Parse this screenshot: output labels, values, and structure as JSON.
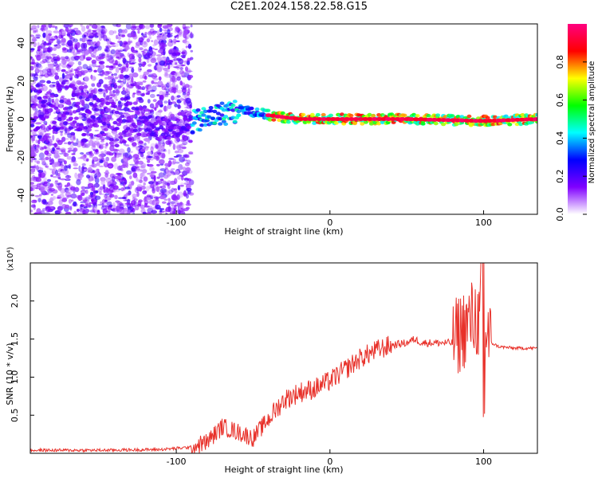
{
  "title": "C2E1.2024.158.22.58.G15",
  "chart_data": [
    {
      "type": "heatmap",
      "xlabel": "Height of straight line (km)",
      "ylabel": "Frequency (Hz)",
      "xlim": [
        -195,
        135
      ],
      "ylim": [
        -50,
        50
      ],
      "x_ticks": [
        -100,
        0,
        100
      ],
      "y_ticks": [
        -40,
        -20,
        0,
        20,
        40
      ],
      "colorbar": {
        "label": "Normalized spectral amplitude",
        "range": [
          0,
          1
        ],
        "ticks": [
          "0.0",
          "0.2",
          "0.4",
          "0.6",
          "0.8"
        ],
        "colors": [
          "#ffffff",
          "#8000ff",
          "#0000ff",
          "#00ffff",
          "#00ff00",
          "#ffff00",
          "#ff0000",
          "#ff0080"
        ]
      },
      "ridge": [
        {
          "x": -195,
          "f": 8
        },
        {
          "x": -160,
          "f": 4
        },
        {
          "x": -130,
          "f": -3
        },
        {
          "x": -110,
          "f": -5
        },
        {
          "x": -90,
          "f": -2
        },
        {
          "x": -70,
          "f": 3
        },
        {
          "x": -55,
          "f": 5
        },
        {
          "x": -40,
          "f": 2
        },
        {
          "x": -20,
          "f": 0
        },
        {
          "x": 0,
          "f": 0
        },
        {
          "x": 50,
          "f": 0
        },
        {
          "x": 100,
          "f": -1
        },
        {
          "x": 135,
          "f": 0
        }
      ]
    },
    {
      "type": "line",
      "xlabel": "Height of straight line (km)",
      "ylabel": "SNR (10 * v/v)",
      "y_multiplier": "(x10⁴)",
      "xlim": [
        -195,
        135
      ],
      "ylim": [
        0,
        2.5
      ],
      "x_ticks": [
        -100,
        0,
        100
      ],
      "y_ticks": [
        "0.5",
        "1.0",
        "1.5",
        "2.0"
      ],
      "series_color": "#e8312a",
      "x": [
        -195,
        -150,
        -110,
        -90,
        -80,
        -70,
        -60,
        -50,
        -40,
        -30,
        -20,
        -10,
        0,
        10,
        20,
        30,
        40,
        50,
        55,
        60,
        70,
        80,
        85,
        90,
        95,
        100,
        105,
        110,
        120,
        135
      ],
      "y": [
        0.04,
        0.04,
        0.05,
        0.08,
        0.15,
        0.35,
        0.28,
        0.2,
        0.45,
        0.7,
        0.8,
        0.85,
        0.95,
        1.1,
        1.25,
        1.35,
        1.42,
        1.45,
        1.5,
        1.45,
        1.45,
        1.45,
        1.6,
        1.7,
        1.8,
        1.6,
        1.45,
        1.4,
        1.38,
        1.38
      ]
    }
  ]
}
